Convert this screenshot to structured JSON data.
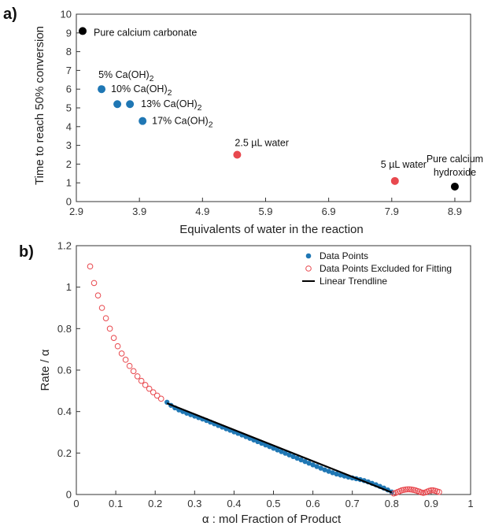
{
  "panel_a_label": "a)",
  "panel_b_label": "b)",
  "colors": {
    "black": "#000000",
    "blue": "#1f77b4",
    "red": "#e8484e",
    "trend": "#000000",
    "excluded": "#e8484e"
  },
  "chart_data": [
    {
      "type": "scatter",
      "xlabel": "Equivalents of water in the reaction",
      "ylabel": "Time to reach 50% conversion",
      "xlim": [
        2.9,
        9.15
      ],
      "ylim": [
        0,
        10
      ],
      "xticks": [
        "2.9",
        "3.9",
        "4.9",
        "5.9",
        "6.9",
        "7.9",
        "8.9"
      ],
      "yticks": [
        "0",
        "1",
        "2",
        "3",
        "4",
        "5",
        "6",
        "7",
        "8",
        "9",
        "10"
      ],
      "grid": false,
      "points": [
        {
          "label": "Pure calcium carbonate",
          "x": 3.0,
          "y": 9.1,
          "color": "black"
        },
        {
          "label": "5% Ca(OH)2",
          "x": 3.3,
          "y": 6.0,
          "color": "blue"
        },
        {
          "label": "10% Ca(OH)2",
          "x": 3.55,
          "y": 5.2,
          "color": "blue"
        },
        {
          "label": "13% Ca(OH)2",
          "x": 3.75,
          "y": 5.2,
          "color": "blue"
        },
        {
          "label": "17% Ca(OH)2",
          "x": 3.95,
          "y": 4.3,
          "color": "blue"
        },
        {
          "label": "2.5 µL water",
          "x": 5.45,
          "y": 2.5,
          "color": "red"
        },
        {
          "label": "5 µL water",
          "x": 7.95,
          "y": 1.1,
          "color": "red"
        },
        {
          "label": "Pure calcium hydroxide",
          "x": 8.9,
          "y": 0.8,
          "color": "black"
        }
      ],
      "annotations": [
        {
          "text": "Pure calcium carbonate"
        },
        {
          "text": "5% Ca(OH)",
          "sub": "2"
        },
        {
          "text": "10% Ca(OH)",
          "sub": "2"
        },
        {
          "text": "13% Ca(OH)",
          "sub": "2"
        },
        {
          "text": "17% Ca(OH)",
          "sub": "2"
        },
        {
          "text": "2.5 µL water"
        },
        {
          "text": "5 µL water"
        },
        {
          "text": "Pure calcium"
        },
        {
          "text": "hydroxide"
        }
      ]
    },
    {
      "type": "scatter",
      "xlabel": "α : mol Fraction of Product",
      "ylabel": "Rate / α",
      "xlim": [
        0,
        1
      ],
      "ylim": [
        0,
        1.2
      ],
      "xticks": [
        "0",
        "0.1",
        "0.2",
        "0.3",
        "0.4",
        "0.5",
        "0.6",
        "0.7",
        "0.8",
        "0.9",
        "1"
      ],
      "yticks": [
        "0",
        "0.2",
        "0.4",
        "0.6",
        "0.8",
        "1",
        "1.2"
      ],
      "grid": false,
      "legend_position": "top-right",
      "series": [
        {
          "name": "Data Points",
          "marker": "filled-circle",
          "color": "blue",
          "x": [
            0.23,
            0.24,
            0.25,
            0.26,
            0.27,
            0.28,
            0.29,
            0.3,
            0.31,
            0.32,
            0.33,
            0.34,
            0.35,
            0.36,
            0.37,
            0.38,
            0.39,
            0.4,
            0.41,
            0.42,
            0.43,
            0.44,
            0.45,
            0.46,
            0.47,
            0.48,
            0.49,
            0.5,
            0.51,
            0.52,
            0.53,
            0.54,
            0.55,
            0.56,
            0.57,
            0.58,
            0.59,
            0.6,
            0.61,
            0.62,
            0.63,
            0.64,
            0.65,
            0.66,
            0.67,
            0.68,
            0.69,
            0.7,
            0.71,
            0.72,
            0.73,
            0.74,
            0.75,
            0.76,
            0.77,
            0.78,
            0.79,
            0.8
          ],
          "y": [
            0.445,
            0.43,
            0.418,
            0.408,
            0.4,
            0.392,
            0.385,
            0.378,
            0.371,
            0.364,
            0.357,
            0.349,
            0.341,
            0.333,
            0.325,
            0.317,
            0.31,
            0.302,
            0.295,
            0.287,
            0.279,
            0.271,
            0.263,
            0.255,
            0.247,
            0.239,
            0.231,
            0.223,
            0.215,
            0.207,
            0.199,
            0.191,
            0.183,
            0.175,
            0.167,
            0.159,
            0.151,
            0.143,
            0.135,
            0.127,
            0.119,
            0.112,
            0.105,
            0.099,
            0.094,
            0.089,
            0.084,
            0.08,
            0.076,
            0.072,
            0.067,
            0.061,
            0.054,
            0.047,
            0.039,
            0.031,
            0.022,
            0.012
          ]
        },
        {
          "name": "Data Points Excluded for Fitting",
          "marker": "open-circle",
          "color": "excluded",
          "x": [
            0.035,
            0.045,
            0.055,
            0.065,
            0.075,
            0.085,
            0.095,
            0.105,
            0.115,
            0.125,
            0.135,
            0.145,
            0.155,
            0.165,
            0.175,
            0.185,
            0.195,
            0.205,
            0.215,
            0.805,
            0.81,
            0.815,
            0.82,
            0.825,
            0.83,
            0.835,
            0.84,
            0.845,
            0.85,
            0.855,
            0.86,
            0.865,
            0.87,
            0.875,
            0.88,
            0.885,
            0.89,
            0.895,
            0.9,
            0.905,
            0.91,
            0.915,
            0.92
          ],
          "y": [
            1.1,
            1.02,
            0.96,
            0.9,
            0.85,
            0.8,
            0.755,
            0.715,
            0.68,
            0.65,
            0.62,
            0.595,
            0.57,
            0.548,
            0.528,
            0.51,
            0.493,
            0.477,
            0.462,
            0.005,
            0.008,
            0.012,
            0.016,
            0.02,
            0.022,
            0.024,
            0.025,
            0.025,
            0.024,
            0.022,
            0.02,
            0.017,
            0.014,
            0.01,
            0.008,
            0.01,
            0.014,
            0.018,
            0.02,
            0.02,
            0.018,
            0.015,
            0.012
          ]
        },
        {
          "name": "Linear Trendline",
          "marker": "line",
          "color": "trend",
          "x": [
            0.23,
            0.8
          ],
          "y": [
            0.44,
            0.01
          ]
        }
      ]
    }
  ]
}
